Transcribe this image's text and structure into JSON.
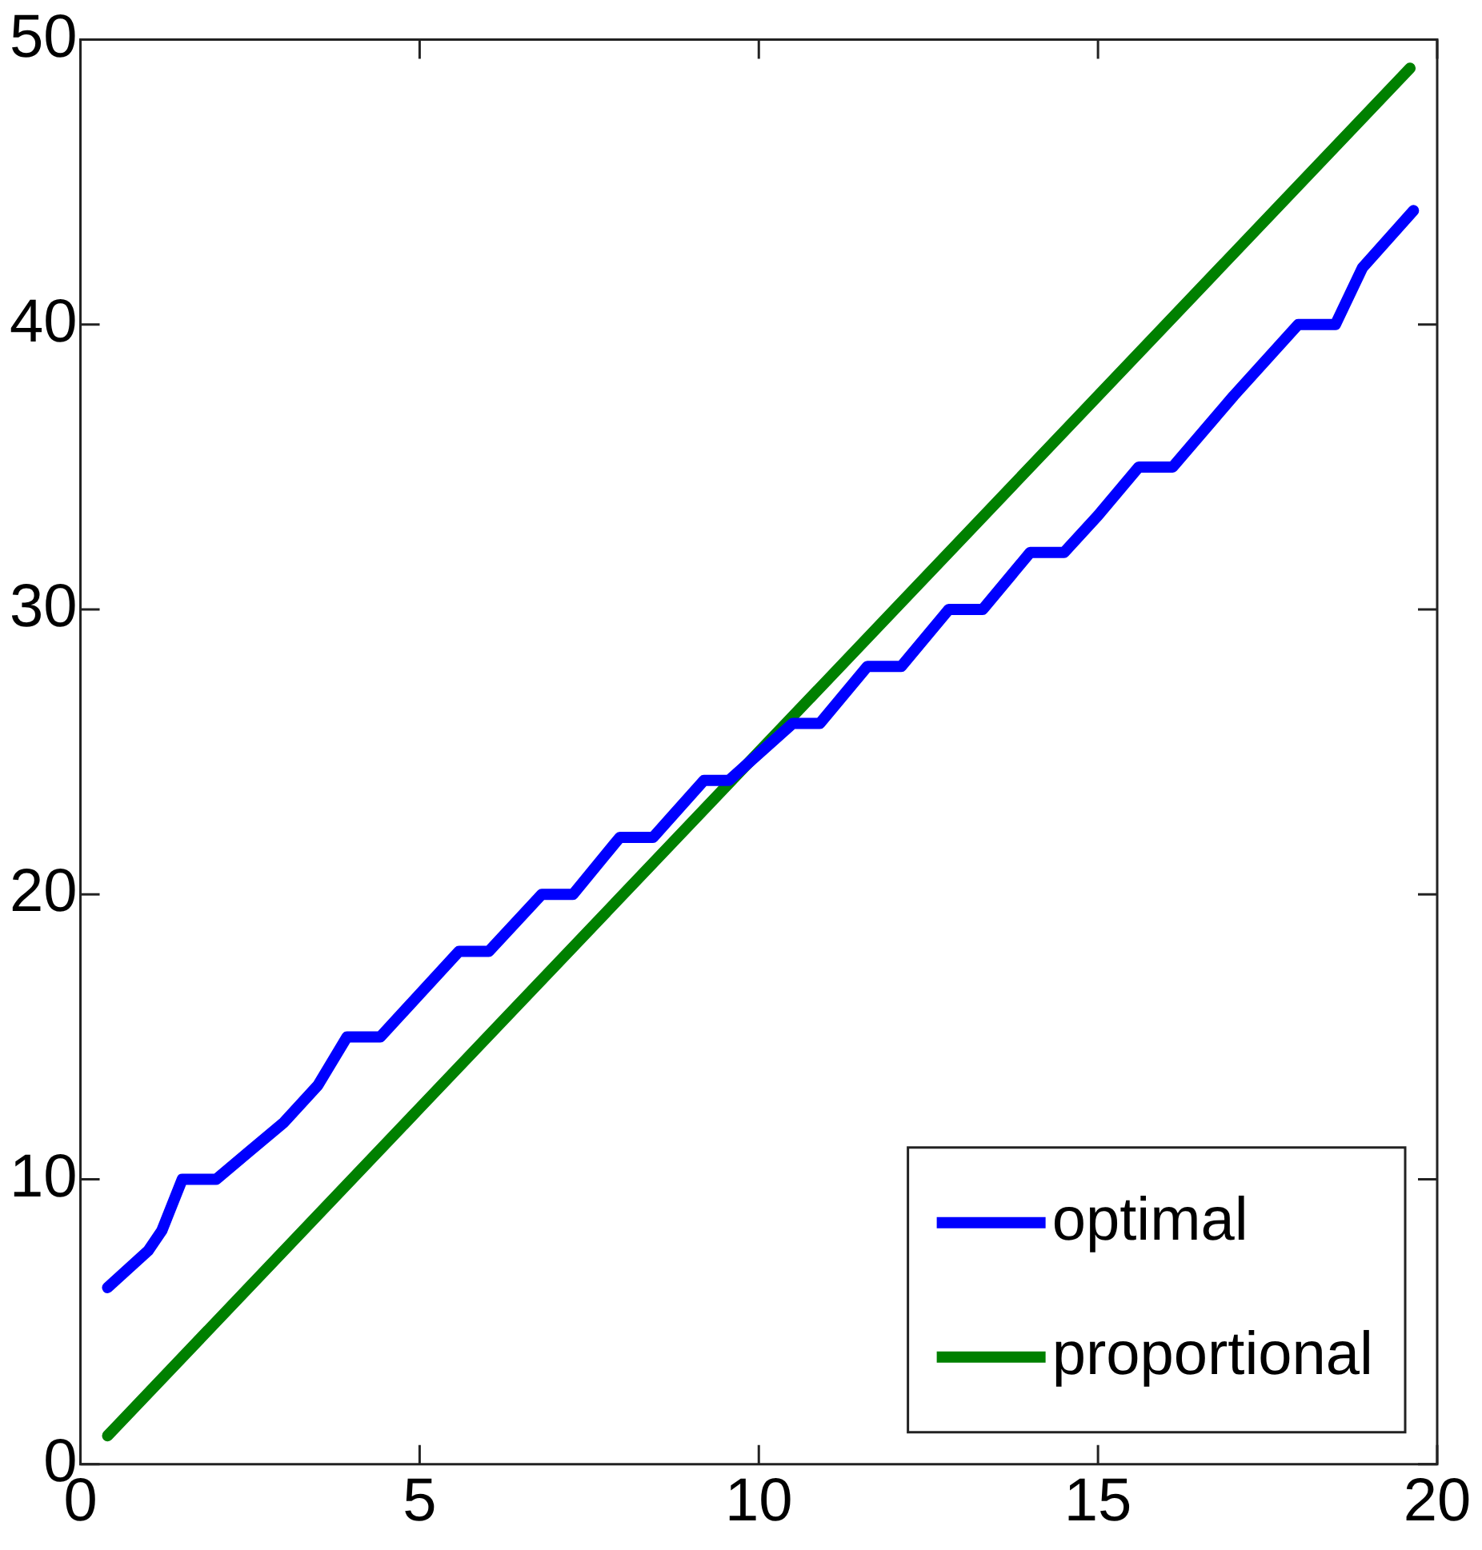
{
  "chart_data": {
    "type": "line",
    "x": [
      0.4,
      1.0,
      1.2,
      1.5,
      2.0,
      2.5,
      3.0,
      3.5,
      3.93,
      4.42,
      5.0,
      5.58,
      6.02,
      6.8,
      7.26,
      7.95,
      8.44,
      9.19,
      9.56,
      10.5,
      10.9,
      11.6,
      12.1,
      12.8,
      13.3,
      14.0,
      14.5,
      15.0,
      15.6,
      16.1,
      17.0,
      17.95,
      18.5,
      18.9,
      19.65
    ],
    "series": [
      {
        "name": "optimal",
        "color": "#0000ff",
        "values": [
          6.2,
          7.5,
          8.2,
          10,
          10,
          11,
          12,
          13.3,
          15,
          15,
          16.5,
          18,
          18,
          20,
          20,
          22,
          22,
          24,
          24,
          26,
          26,
          28,
          28,
          30,
          30,
          32,
          32,
          33.3,
          35,
          35,
          37.5,
          40,
          40,
          42,
          44
        ]
      },
      {
        "name": "proportional",
        "color": "#008000",
        "x": [
          0.4,
          5,
          10,
          15,
          19.6
        ],
        "values": [
          1,
          12.5,
          25,
          37.5,
          49
        ]
      }
    ],
    "xlim": [
      0,
      20
    ],
    "xticks": [
      0,
      5,
      10,
      15,
      20
    ],
    "ylim": [
      0,
      50
    ],
    "yticks": [
      0,
      10,
      20,
      30,
      40,
      50
    ],
    "legend": "bottom right",
    "grid": false
  }
}
